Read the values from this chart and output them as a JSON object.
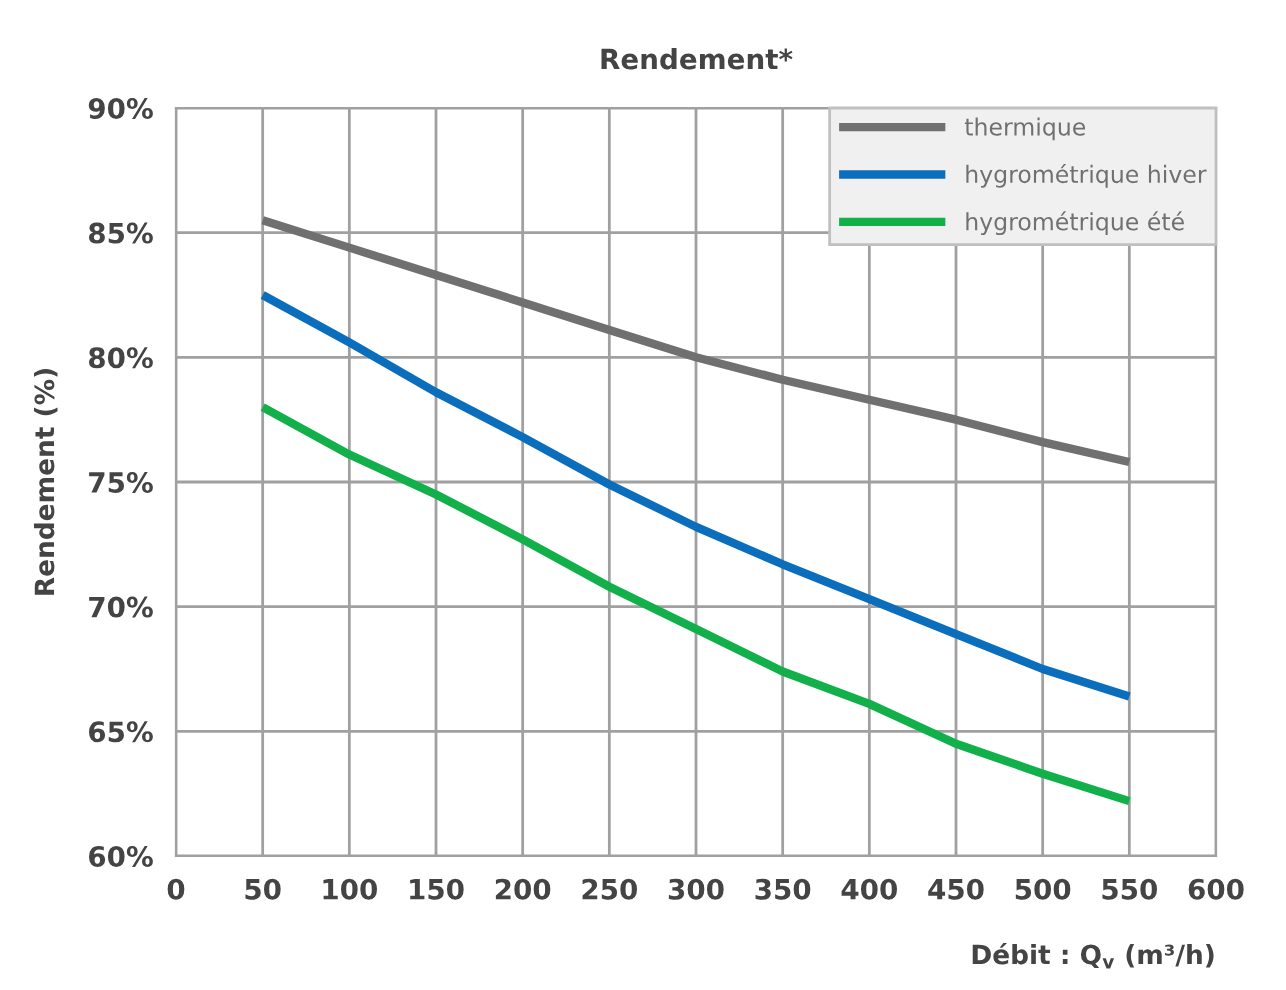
{
  "chart_data": {
    "type": "line",
    "title": "Rendement*",
    "xlabel": "Débit : Q$_{v}$ (m³/h)",
    "ylabel": "Rendement (%)",
    "x": [
      50,
      100,
      150,
      200,
      250,
      300,
      350,
      400,
      450,
      500,
      550
    ],
    "series": [
      {
        "name": "thermique",
        "color": "#707070",
        "values": [
          85.5,
          84.4,
          83.3,
          82.2,
          81.1,
          80.0,
          79.1,
          78.3,
          77.5,
          76.6,
          75.8
        ]
      },
      {
        "name": "hygrométrique hiver",
        "color": "#0a6ebd",
        "values": [
          82.5,
          80.6,
          78.6,
          76.8,
          74.9,
          73.2,
          71.7,
          70.3,
          68.9,
          67.5,
          66.4
        ]
      },
      {
        "name": "hygrométrique été",
        "color": "#12b04a",
        "values": [
          78.0,
          76.1,
          74.5,
          72.7,
          70.8,
          69.1,
          67.4,
          66.1,
          64.5,
          63.3,
          62.2
        ]
      }
    ],
    "xlim": [
      0,
      600
    ],
    "xticks": [
      0,
      50,
      100,
      150,
      200,
      250,
      300,
      350,
      400,
      450,
      500,
      550,
      600
    ],
    "ylim": [
      60,
      90
    ],
    "yticks": [
      {
        "value": 60,
        "label": "60%"
      },
      {
        "value": 65,
        "label": "65%"
      },
      {
        "value": 70,
        "label": "70%"
      },
      {
        "value": 75,
        "label": "75%"
      },
      {
        "value": 80,
        "label": "80%"
      },
      {
        "value": 85,
        "label": "85%"
      },
      {
        "value": 90,
        "label": "90%"
      }
    ],
    "grid": true,
    "legend": "top right",
    "marker": "none",
    "line_style": "solid"
  }
}
